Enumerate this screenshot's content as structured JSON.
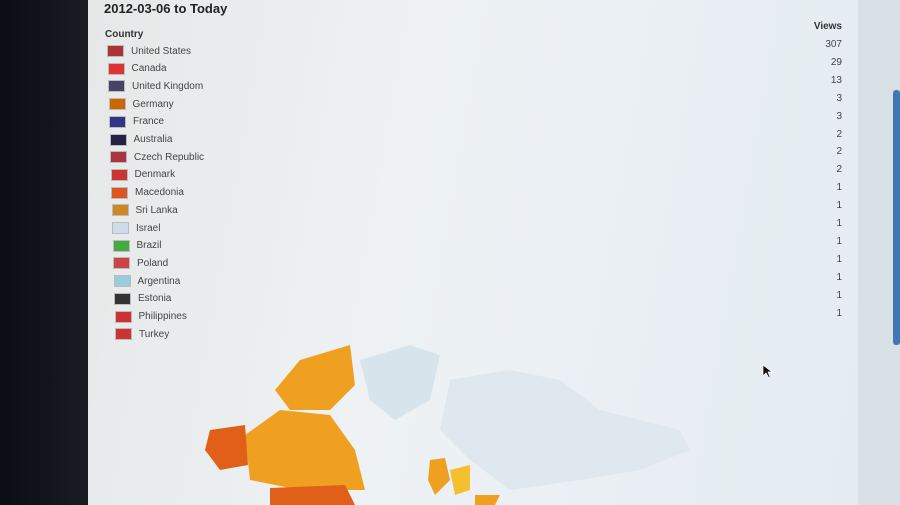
{
  "title": "2012-03-06 to Today",
  "headers": {
    "country": "Country",
    "views": "Views"
  },
  "rows": [
    {
      "country": "United States",
      "views": "307",
      "flag": "#a33"
    },
    {
      "country": "Canada",
      "views": "29",
      "flag": "#d33"
    },
    {
      "country": "United Kingdom",
      "views": "13",
      "flag": "#446"
    },
    {
      "country": "Germany",
      "views": "3",
      "flag": "#c60"
    },
    {
      "country": "France",
      "views": "3",
      "flag": "#338"
    },
    {
      "country": "Australia",
      "views": "2",
      "flag": "#224"
    },
    {
      "country": "Czech Republic",
      "views": "2",
      "flag": "#a34"
    },
    {
      "country": "Denmark",
      "views": "2",
      "flag": "#c33"
    },
    {
      "country": "Macedonia",
      "views": "1",
      "flag": "#d52"
    },
    {
      "country": "Sri Lanka",
      "views": "1",
      "flag": "#c82"
    },
    {
      "country": "Israel",
      "views": "1",
      "flag": "#cde"
    },
    {
      "country": "Brazil",
      "views": "1",
      "flag": "#4a4"
    },
    {
      "country": "Poland",
      "views": "1",
      "flag": "#c44"
    },
    {
      "country": "Argentina",
      "views": "1",
      "flag": "#9cd"
    },
    {
      "country": "Estonia",
      "views": "1",
      "flag": "#333"
    },
    {
      "country": "Philippines",
      "views": "1",
      "flag": "#c33"
    },
    {
      "country": "Turkey",
      "views": null,
      "flag": "#c33"
    }
  ],
  "colors": {
    "high": "#e0601a",
    "mid": "#f0a020",
    "low": "#f5c030",
    "none": "#d8e4ec",
    "scrollbar": "#3f78b4"
  }
}
